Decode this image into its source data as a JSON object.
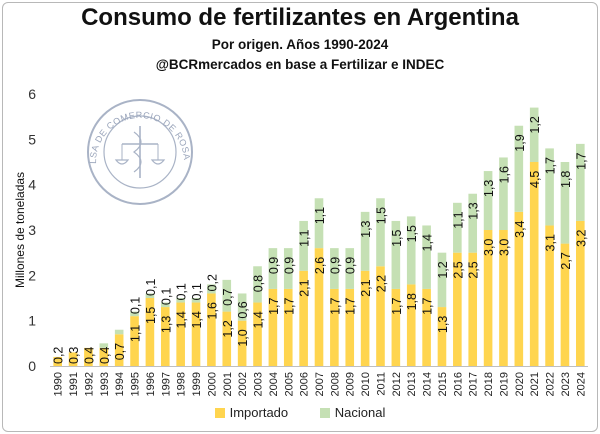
{
  "chart_data": {
    "type": "bar",
    "stacked": true,
    "title": "Consumo de fertilizantes en Argentina",
    "subtitle": "Por origen. Años 1990-2024",
    "source": "@BCRmercados en base a Fertilizar e INDEC",
    "xlabel": "",
    "ylabel": "Millones de toneladas",
    "ylim": [
      0,
      6
    ],
    "yticks": [
      "0",
      "1",
      "2",
      "3",
      "4",
      "5",
      "6"
    ],
    "grid": false,
    "legend_position": "bottom",
    "categories": [
      "1990",
      "1991",
      "1992",
      "1993",
      "1994",
      "1995",
      "1996",
      "1997",
      "1998",
      "1999",
      "2000",
      "2001",
      "2002",
      "2003",
      "2004",
      "2005",
      "2006",
      "2007",
      "2008",
      "2009",
      "2010",
      "2011",
      "2012",
      "2013",
      "2014",
      "2015",
      "2016",
      "2017",
      "2018",
      "2019",
      "2020",
      "2021",
      "2022",
      "2023",
      "2024"
    ],
    "series": [
      {
        "name": "Importado",
        "color": "#ffd54f",
        "values": [
          0.2,
          0.3,
          0.4,
          0.4,
          0.7,
          1.1,
          1.5,
          1.3,
          1.4,
          1.4,
          1.6,
          1.2,
          1.0,
          1.4,
          1.7,
          1.7,
          2.1,
          2.6,
          1.7,
          1.7,
          2.1,
          2.2,
          1.7,
          1.8,
          1.7,
          1.3,
          2.5,
          2.5,
          3.0,
          3.0,
          3.4,
          4.5,
          3.1,
          2.7,
          3.2
        ],
        "labels": [
          "0,2",
          "0,3",
          "0,4",
          "0,4",
          "0,7",
          "1,1",
          "1,5",
          "1,3",
          "1,4",
          "1,4",
          "1,6",
          "1,2",
          "1,0",
          "1,4",
          "1,7",
          "1,7",
          "2,1",
          "2,6",
          "1,7",
          "1,7",
          "2,1",
          "2,2",
          "1,7",
          "1,8",
          "1,7",
          "1,3",
          "2,5",
          "2,5",
          "3,0",
          "3,0",
          "3,4",
          "4,5",
          "3,1",
          "2,7",
          "3,2"
        ]
      },
      {
        "name": "Nacional",
        "color": "#c5e0b4",
        "values": [
          0.0,
          0.0,
          0.0,
          0.1,
          0.1,
          0.1,
          0.1,
          0.1,
          0.1,
          0.1,
          0.2,
          0.7,
          0.6,
          0.8,
          0.9,
          0.9,
          1.1,
          1.1,
          0.9,
          0.9,
          1.3,
          1.5,
          1.5,
          1.5,
          1.4,
          1.2,
          1.1,
          1.3,
          1.3,
          1.6,
          1.9,
          1.2,
          1.7,
          1.8,
          1.7
        ],
        "labels": [
          "",
          "",
          "",
          "",
          "",
          "0,1",
          "0,1",
          "0,1",
          "0,1",
          "0,1",
          "0,2",
          "0,7",
          "0,6",
          "0,8",
          "0,9",
          "0,9",
          "1,1",
          "1,1",
          "0,9",
          "0,9",
          "1,3",
          "1,5",
          "1,5",
          "1,5",
          "1,4",
          "1,2",
          "1,1",
          "1,3",
          "1,3",
          "1,6",
          "1,9",
          "1,2",
          "1,7",
          "1,8",
          "1,7"
        ]
      }
    ]
  },
  "watermark": {
    "text": "BOLSA DE COMERCIO DE ROSARIO"
  }
}
